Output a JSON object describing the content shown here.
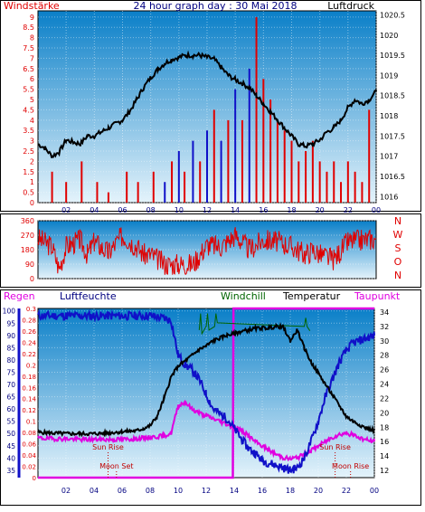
{
  "colors": {
    "red": "#e00000",
    "blue": "#1010c8",
    "black": "#000000",
    "green": "#006400",
    "magenta": "#e000e0",
    "navy": "#000080",
    "sky_top": "#0a7fc8",
    "sky_bottom": "#e4f3fb"
  },
  "chart_data": [
    {
      "type": "line",
      "title": "24 hour graph day : 30 Mai 2018",
      "left_label": "Windstärke",
      "right_label": "Luftdruck",
      "x_ticks": [
        "02",
        "04",
        "06",
        "08",
        "10",
        "12",
        "14",
        "16",
        "18",
        "20",
        "22",
        "00"
      ],
      "y_left_ticks": [
        "0",
        "0.5",
        "1",
        "1.5",
        "2",
        "2.5",
        "3",
        "3.5",
        "4",
        "4.5",
        "5",
        "5.5",
        "6",
        "6.5",
        "7",
        "7.5",
        "8",
        "8.5",
        "9"
      ],
      "y_right_ticks": [
        "1016",
        "1016.5",
        "1017",
        "1017.5",
        "1018",
        "1018.5",
        "1019",
        "1019.5",
        "1020",
        "1020.5"
      ],
      "ylim_left": [
        0,
        9.3
      ],
      "ylim_right": [
        1015.85,
        1020.6
      ],
      "series": [
        {
          "name": "Luftdruck",
          "x": [
            0,
            0.5,
            1,
            1.5,
            2,
            2.5,
            3,
            3.5,
            4,
            4.5,
            5,
            5.5,
            6,
            6.5,
            7,
            7.5,
            8,
            8.5,
            9,
            9.5,
            10,
            10.5,
            11,
            11.5,
            12,
            12.5,
            13,
            13.5,
            14,
            14.5,
            15,
            15.5,
            16,
            16.5,
            17,
            17.5,
            18,
            18.5,
            19,
            19.5,
            20,
            20.5,
            21,
            21.5,
            22,
            22.5,
            23,
            23.5,
            24
          ],
          "y": [
            1017.3,
            1017.2,
            1017.0,
            1017.1,
            1017.4,
            1017.35,
            1017.3,
            1017.5,
            1017.5,
            1017.6,
            1017.7,
            1017.8,
            1017.9,
            1018.1,
            1018.4,
            1018.7,
            1018.95,
            1019.15,
            1019.3,
            1019.4,
            1019.45,
            1019.5,
            1019.5,
            1019.5,
            1019.45,
            1019.4,
            1019.2,
            1019.0,
            1018.9,
            1018.8,
            1018.7,
            1018.5,
            1018.3,
            1018.1,
            1017.9,
            1017.7,
            1017.5,
            1017.3,
            1017.25,
            1017.3,
            1017.4,
            1017.6,
            1017.7,
            1017.9,
            1018.2,
            1018.4,
            1018.3,
            1018.4,
            1018.6
          ]
        },
        {
          "name": "Wind",
          "x": [
            1.0,
            2.0,
            3.1,
            4.2,
            5.0,
            6.3,
            7.1,
            8.2,
            9.0,
            9.5,
            10.0,
            10.4,
            11.0,
            11.5,
            12.0,
            12.5,
            13.0,
            13.5,
            14.0,
            14.5,
            15.0,
            15.5,
            16.0,
            16.5,
            17.0,
            17.5,
            18.0,
            18.5,
            19.0,
            19.5,
            20.0,
            20.5,
            21.0,
            21.5,
            22.0,
            22.5,
            23.0,
            23.5
          ],
          "y": [
            1.5,
            1.0,
            2.0,
            1.0,
            0.5,
            1.5,
            1.0,
            1.5,
            1.0,
            2.0,
            2.5,
            1.5,
            3.0,
            2.0,
            3.5,
            4.5,
            3.0,
            4.0,
            5.5,
            4.0,
            6.5,
            9.0,
            6.0,
            5.0,
            4.0,
            3.5,
            3.0,
            2.0,
            2.5,
            3.0,
            2.0,
            1.5,
            2.0,
            1.0,
            2.0,
            1.5,
            1.0,
            4.5
          ]
        }
      ]
    },
    {
      "type": "line",
      "right_label": "N W S O N",
      "y_left_ticks": [
        "0",
        "90",
        "180",
        "270",
        "360"
      ],
      "ylim": [
        0,
        360
      ],
      "series": [
        {
          "name": "Windrichtung",
          "x": [
            0,
            1,
            1.5,
            2,
            3,
            3.5,
            4,
            5,
            6,
            7,
            7.5,
            8,
            9,
            10,
            11,
            12,
            13,
            14,
            15,
            16,
            17,
            18,
            19,
            19.5,
            20,
            21,
            22,
            23,
            24
          ],
          "y": [
            250,
            200,
            60,
            200,
            240,
            150,
            230,
            160,
            270,
            200,
            150,
            150,
            90,
            90,
            90,
            210,
            200,
            270,
            180,
            240,
            230,
            200,
            150,
            180,
            150,
            120,
            230,
            240,
            250
          ]
        }
      ]
    },
    {
      "type": "line",
      "legend": [
        "Regen",
        "Luftfeuchte",
        "Windchill",
        "Temperatur",
        "Taupunkt"
      ],
      "y_regen_ticks": [
        "0",
        "0.02",
        "0.04",
        "0.06",
        "0.08",
        "0.1",
        "0.12",
        "0.14",
        "0.16",
        "0.18",
        "0.2",
        "0.22",
        "0.24",
        "0.26",
        "0.28",
        "0.3"
      ],
      "y_humidity_ticks": [
        "35",
        "40",
        "45",
        "50",
        "55",
        "60",
        "65",
        "70",
        "75",
        "80",
        "85",
        "90",
        "95",
        "100"
      ],
      "y_temp_ticks": [
        "12",
        "14",
        "16",
        "18",
        "20",
        "22",
        "24",
        "26",
        "28",
        "30",
        "32",
        "34"
      ],
      "ylim_humidity": [
        32,
        101
      ],
      "ylim_temp": [
        11,
        34.5
      ],
      "annotations": [
        "Sun Rise",
        "Moon Set",
        "Sun Rise",
        "Moon Rise"
      ],
      "series": [
        {
          "name": "Luftfeuchte",
          "x": [
            0,
            1,
            2,
            3,
            4,
            5,
            6,
            7,
            8,
            9,
            9.5,
            10,
            10.5,
            11,
            11.5,
            12,
            12.5,
            13,
            13.5,
            14,
            14.5,
            15,
            15.5,
            16,
            16.5,
            17,
            17.5,
            18,
            18.5,
            19,
            19.5,
            20,
            20.5,
            21,
            21.5,
            22,
            22.5,
            23,
            23.5,
            24
          ],
          "y": [
            98,
            98,
            98,
            98,
            98,
            98,
            98,
            98,
            98,
            97,
            96,
            82,
            78,
            76,
            72,
            66,
            60,
            58,
            56,
            52,
            48,
            44,
            42,
            39,
            38,
            37,
            36,
            35,
            36,
            40,
            47,
            55,
            65,
            72,
            79,
            84,
            87,
            88,
            89,
            90
          ]
        },
        {
          "name": "Temperatur",
          "x": [
            0,
            1,
            2,
            3,
            4,
            5,
            6,
            7,
            7.5,
            8,
            8.5,
            9,
            9.5,
            10,
            10.5,
            11,
            11.5,
            12,
            12.5,
            13,
            13.5,
            14,
            14.5,
            15,
            15.5,
            16,
            16.5,
            17,
            17.5,
            18,
            18.5,
            19,
            19.5,
            20,
            20.5,
            21,
            21.5,
            22,
            22.5,
            23,
            23.5,
            24
          ],
          "y": [
            17.3,
            17.2,
            17.1,
            17.1,
            17.1,
            17.2,
            17.4,
            17.5,
            17.8,
            18.2,
            19.5,
            22.0,
            25.0,
            26.5,
            27.2,
            28.0,
            28.8,
            29.3,
            30.0,
            30.4,
            30.8,
            31.0,
            31.3,
            31.5,
            31.7,
            31.8,
            31.8,
            32.0,
            31.9,
            30.0,
            31.5,
            29.0,
            27.0,
            25.5,
            24.0,
            22.5,
            21.0,
            19.5,
            18.8,
            18.3,
            17.8,
            17.6
          ]
        },
        {
          "name": "Taupunkt",
          "x": [
            0,
            1,
            2,
            3,
            4,
            5,
            6,
            7,
            8,
            9,
            9.5,
            10,
            10.5,
            11,
            11.5,
            12,
            12.5,
            13,
            13.5,
            14,
            14.5,
            15,
            15.5,
            16,
            16.5,
            17,
            17.5,
            18,
            18.5,
            19,
            19.5,
            20,
            20.5,
            21,
            21.5,
            22,
            22.5,
            23,
            23.5,
            24
          ],
          "y": [
            16.5,
            16.4,
            16.4,
            16.3,
            16.3,
            16.3,
            16.3,
            16.4,
            16.6,
            16.8,
            17.2,
            21.0,
            21.5,
            20.5,
            20.0,
            19.6,
            19.2,
            18.8,
            18.4,
            18.0,
            17.6,
            16.8,
            16.0,
            15.4,
            14.8,
            14.2,
            13.8,
            13.6,
            13.8,
            14.2,
            14.8,
            15.4,
            16.0,
            16.6,
            17.0,
            17.2,
            16.9,
            16.5,
            16.2,
            16.0
          ]
        },
        {
          "name": "Windchill",
          "x": [
            11.5,
            11.6,
            11.7,
            12.0,
            12.1,
            12.2,
            12.6,
            12.7,
            12.8,
            19.0,
            19.1,
            19.2,
            19.4
          ],
          "y": [
            31.5,
            33.8,
            31.0,
            32.0,
            33.8,
            31.5,
            32.0,
            33.8,
            32.5,
            32.0,
            33.2,
            32.0,
            31.4
          ]
        },
        {
          "name": "Regen",
          "x": [
            0,
            13.9,
            13.95,
            24
          ],
          "y": [
            0,
            0,
            0.3,
            0.3
          ]
        }
      ]
    }
  ]
}
